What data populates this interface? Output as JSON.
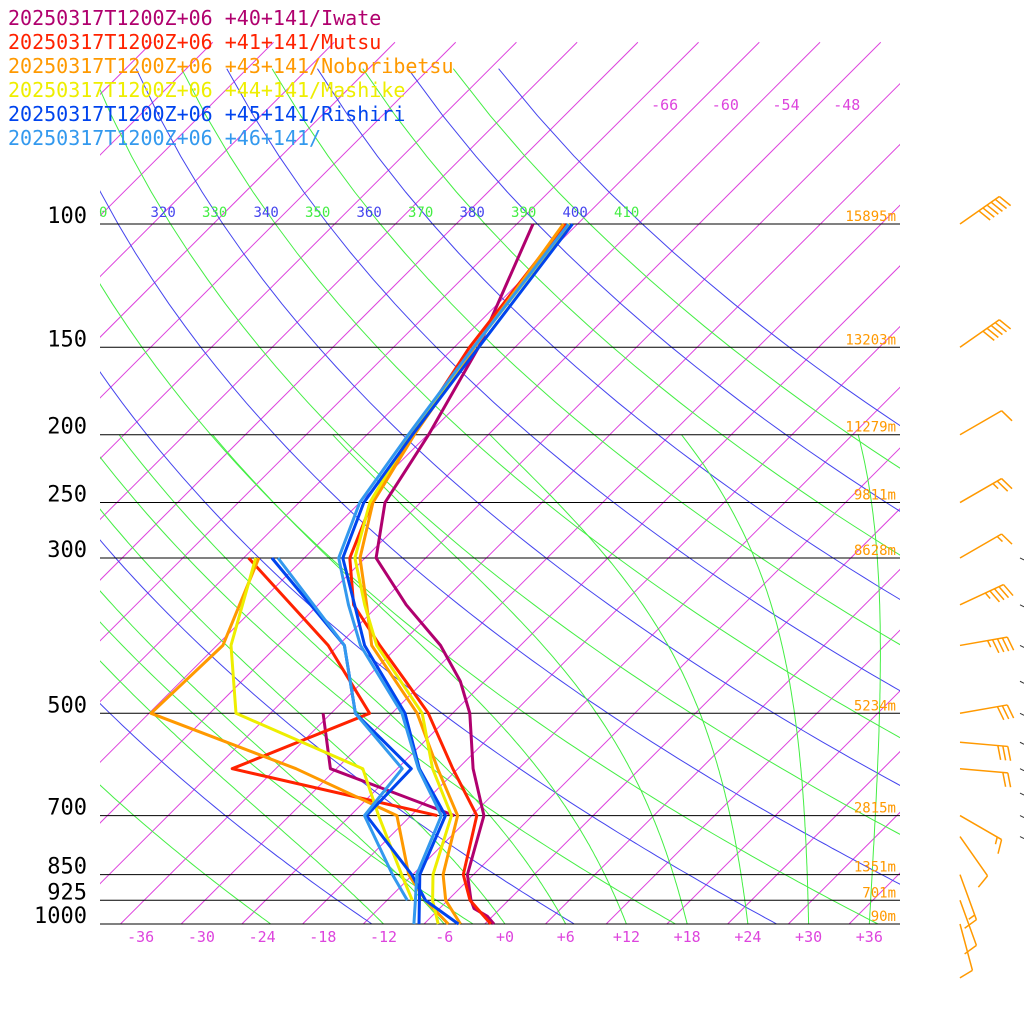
{
  "legend": [
    {
      "text": "20250317T1200Z+06 +40+141/Iwate",
      "color": "#b0006e"
    },
    {
      "text": "20250317T1200Z+06 +41+141/Mutsu",
      "color": "#ff2200"
    },
    {
      "text": "20250317T1200Z+06 +43+141/Noboribetsu",
      "color": "#ff9900"
    },
    {
      "text": "20250317T1200Z+06 +44+141/Mashike",
      "color": "#eeee00"
    },
    {
      "text": "20250317T1200Z+06 +45+141/Rishiri",
      "color": "#0044ee"
    },
    {
      "text": "20250317T1200Z+06 +46+141/",
      "color": "#3399ee"
    }
  ],
  "chart_data": {
    "type": "line",
    "title": "",
    "pressure_levels": [
      100,
      150,
      200,
      250,
      300,
      500,
      700,
      850,
      925,
      1000
    ],
    "height_labels": [
      {
        "p": 100,
        "text": "15895m"
      },
      {
        "p": 150,
        "text": "13203m"
      },
      {
        "p": 200,
        "text": "11279m"
      },
      {
        "p": 250,
        "text": "9811m"
      },
      {
        "p": 300,
        "text": "8628m"
      },
      {
        "p": 500,
        "text": "5234m"
      },
      {
        "p": 700,
        "text": "2815m"
      },
      {
        "p": 850,
        "text": "1351m"
      },
      {
        "p": 925,
        "text": "701m"
      },
      {
        "p": 1000,
        "text": "90m"
      }
    ],
    "temperature_ticks": [
      "-36",
      "-30",
      "-24",
      "-18",
      "-12",
      "-6",
      "+0",
      "+6",
      "+12",
      "+18",
      "+24",
      "+30",
      "+36"
    ],
    "skewed_temperature_labels": [
      "-66",
      "-60",
      "-54",
      "-48"
    ],
    "theta_labels": [
      {
        "text": "0",
        "color": "#44ee44"
      },
      {
        "text": "320",
        "color": "#4444ee"
      },
      {
        "text": "330",
        "color": "#44ee44"
      },
      {
        "text": "340",
        "color": "#4444ee"
      },
      {
        "text": "350",
        "color": "#44ee44"
      },
      {
        "text": "360",
        "color": "#4444ee"
      },
      {
        "text": "370",
        "color": "#44ee44"
      },
      {
        "text": "380",
        "color": "#4444ee"
      },
      {
        "text": "390",
        "color": "#44ee44"
      },
      {
        "text": "400",
        "color": "#4444ee"
      },
      {
        "text": "410",
        "color": "#44ee44"
      }
    ],
    "series": [
      {
        "name": "20250317T1200Z+06 +40+141/Iwate",
        "color": "#b0006e",
        "temperature": [
          [
            1000,
            -1.1
          ],
          [
            975,
            -2.5
          ],
          [
            950,
            -4.6
          ],
          [
            925,
            -5.7
          ],
          [
            850,
            -8.6
          ],
          [
            700,
            -12.8
          ],
          [
            600,
            -18.5
          ],
          [
            500,
            -24.3
          ],
          [
            450,
            -28.4
          ],
          [
            400,
            -33.9
          ],
          [
            350,
            -41.3
          ],
          [
            300,
            -48.9
          ],
          [
            250,
            -53.5
          ],
          [
            200,
            -55.9
          ],
          [
            150,
            -59.6
          ],
          [
            100,
            -66.4
          ]
        ],
        "dewpoint": [
          [
            500,
            -38.8
          ],
          [
            600,
            -32.6
          ],
          [
            700,
            -15.7
          ]
        ]
      },
      {
        "name": "20250317T1200Z+06 +41+141/Mutsu",
        "color": "#ff2200",
        "temperature": [
          [
            1000,
            -1.4
          ],
          [
            925,
            -5.8
          ],
          [
            850,
            -9.0
          ],
          [
            700,
            -13.5
          ],
          [
            600,
            -20.5
          ],
          [
            500,
            -28.4
          ],
          [
            450,
            -33.8
          ],
          [
            400,
            -39.9
          ],
          [
            350,
            -46.5
          ],
          [
            300,
            -51.5
          ],
          [
            250,
            -54.8
          ],
          [
            200,
            -57.5
          ],
          [
            150,
            -60.5
          ],
          [
            100,
            -63.2
          ]
        ],
        "dewpoint": [
          [
            300,
            -61.5
          ],
          [
            400,
            -45.0
          ],
          [
            500,
            -34.2
          ],
          [
            600,
            -42.3
          ],
          [
            700,
            -17.4
          ]
        ]
      },
      {
        "name": "20250317T1200Z+06 +43+141/Noboribetsu",
        "color": "#ff9900",
        "temperature": [
          [
            1000,
            -4.4
          ],
          [
            925,
            -8.2
          ],
          [
            850,
            -11.0
          ],
          [
            700,
            -15.4
          ],
          [
            600,
            -22.0
          ],
          [
            500,
            -29.5
          ],
          [
            400,
            -40.7
          ],
          [
            350,
            -45.2
          ],
          [
            300,
            -50.5
          ],
          [
            250,
            -54.7
          ],
          [
            200,
            -57.3
          ],
          [
            150,
            -60.0
          ],
          [
            100,
            -63.4
          ]
        ],
        "dewpoint": [
          [
            300,
            -60.5
          ],
          [
            400,
            -55.4
          ],
          [
            500,
            -55.8
          ],
          [
            600,
            -36.0
          ],
          [
            700,
            -21.4
          ],
          [
            850,
            -14.4
          ],
          [
            925,
            -10.2
          ],
          [
            1000,
            -5.6
          ]
        ]
      },
      {
        "name": "20250317T1200Z+06 +44+141/Mashike",
        "color": "#eeee00",
        "temperature": [
          [
            1000,
            -6.6
          ],
          [
            925,
            -9.5
          ],
          [
            850,
            -12.0
          ],
          [
            700,
            -16.0
          ],
          [
            600,
            -22.5
          ],
          [
            500,
            -29.0
          ],
          [
            400,
            -40.2
          ],
          [
            350,
            -45.4
          ],
          [
            300,
            -51.0
          ],
          [
            250,
            -55.0
          ],
          [
            200,
            -57.7
          ],
          [
            150,
            -60.1
          ],
          [
            100,
            -62.8
          ]
        ],
        "dewpoint": [
          [
            300,
            -60.8
          ],
          [
            400,
            -54.6
          ],
          [
            500,
            -47.4
          ],
          [
            600,
            -29.4
          ],
          [
            700,
            -23.2
          ],
          [
            850,
            -15.1
          ],
          [
            925,
            -11.5
          ]
        ]
      },
      {
        "name": "20250317T1200Z+06 +45+141/Rishiri",
        "color": "#0044ee",
        "temperature": [
          [
            1000,
            -8.5
          ],
          [
            925,
            -10.8
          ],
          [
            850,
            -13.3
          ],
          [
            700,
            -16.6
          ],
          [
            600,
            -23.8
          ],
          [
            500,
            -30.7
          ],
          [
            400,
            -41.4
          ],
          [
            350,
            -46.4
          ],
          [
            300,
            -52.2
          ],
          [
            250,
            -55.6
          ],
          [
            200,
            -57.5
          ],
          [
            150,
            -59.6
          ],
          [
            100,
            -62.5
          ]
        ],
        "dewpoint": [
          [
            300,
            -59.2
          ],
          [
            400,
            -43.4
          ],
          [
            500,
            -35.6
          ],
          [
            600,
            -24.6
          ],
          [
            700,
            -24.4
          ],
          [
            850,
            -14.1
          ],
          [
            925,
            -10.2
          ],
          [
            1000,
            -4.6
          ]
        ]
      },
      {
        "name": "20250317T1200Z+06 +46+141/",
        "color": "#3399ee",
        "temperature": [
          [
            1000,
            -9.0
          ],
          [
            925,
            -11.2
          ],
          [
            850,
            -13.6
          ],
          [
            700,
            -17.0
          ],
          [
            600,
            -23.9
          ],
          [
            500,
            -31.0
          ],
          [
            400,
            -41.8
          ],
          [
            350,
            -47.0
          ],
          [
            300,
            -52.6
          ],
          [
            250,
            -56.0
          ],
          [
            200,
            -57.9
          ],
          [
            150,
            -60.1
          ],
          [
            100,
            -62.9
          ]
        ],
        "dewpoint": [
          [
            300,
            -58.6
          ],
          [
            400,
            -43.4
          ],
          [
            500,
            -35.6
          ],
          [
            600,
            -25.5
          ],
          [
            700,
            -24.6
          ],
          [
            850,
            -16.0
          ],
          [
            925,
            -12.0
          ]
        ]
      }
    ],
    "wind_barbs": [
      {
        "p": 100,
        "speed_kt": 60,
        "dir_deg": 235
      },
      {
        "p": 150,
        "speed_kt": 50,
        "dir_deg": 235
      },
      {
        "p": 200,
        "speed_kt": 10,
        "dir_deg": 240
      },
      {
        "p": 250,
        "speed_kt": 25,
        "dir_deg": 240
      },
      {
        "p": 300,
        "speed_kt": 15,
        "dir_deg": 240
      },
      {
        "p": 350,
        "speed_kt": 45,
        "dir_deg": 245
      },
      {
        "p": 400,
        "speed_kt": 45,
        "dir_deg": 260
      },
      {
        "p": 500,
        "speed_kt": 30,
        "dir_deg": 260
      },
      {
        "p": 550,
        "speed_kt": 30,
        "dir_deg": 275
      },
      {
        "p": 600,
        "speed_kt": 20,
        "dir_deg": 275
      },
      {
        "p": 700,
        "speed_kt": 15,
        "dir_deg": 300
      },
      {
        "p": 750,
        "speed_kt": 10,
        "dir_deg": 325
      },
      {
        "p": 850,
        "speed_kt": 15,
        "dir_deg": 340
      },
      {
        "p": 925,
        "speed_kt": 10,
        "dir_deg": 340
      },
      {
        "p": 1000,
        "speed_kt": 10,
        "dir_deg": 345
      }
    ],
    "right_edge_dashes": [
      300,
      350,
      400,
      450,
      500,
      550,
      600,
      650,
      700,
      750
    ]
  }
}
